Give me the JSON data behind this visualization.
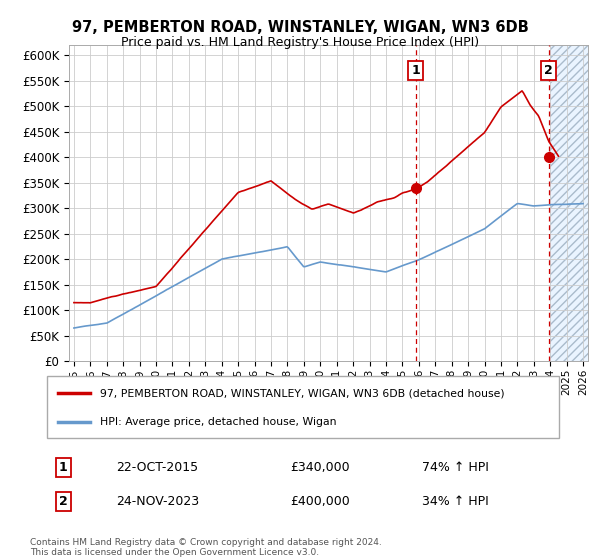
{
  "title": "97, PEMBERTON ROAD, WINSTANLEY, WIGAN, WN3 6DB",
  "subtitle": "Price paid vs. HM Land Registry's House Price Index (HPI)",
  "xlim_start": 1995,
  "xlim_end": 2026,
  "ylim_min": 0,
  "ylim_max": 620000,
  "yticks": [
    0,
    50000,
    100000,
    150000,
    200000,
    250000,
    300000,
    350000,
    400000,
    450000,
    500000,
    550000,
    600000
  ],
  "ytick_labels": [
    "£0",
    "£50K",
    "£100K",
    "£150K",
    "£200K",
    "£250K",
    "£300K",
    "£350K",
    "£400K",
    "£450K",
    "£500K",
    "£550K",
    "£600K"
  ],
  "xticks": [
    1995,
    1996,
    1997,
    1998,
    1999,
    2000,
    2001,
    2002,
    2003,
    2004,
    2005,
    2006,
    2007,
    2008,
    2009,
    2010,
    2011,
    2012,
    2013,
    2014,
    2015,
    2016,
    2017,
    2018,
    2019,
    2020,
    2021,
    2022,
    2023,
    2024,
    2025,
    2026
  ],
  "sale1_x": 2015.8,
  "sale1_y": 340000,
  "sale1_label": "1",
  "sale1_date": "22-OCT-2015",
  "sale1_price": "£340,000",
  "sale1_hpi": "74% ↑ HPI",
  "sale2_x": 2023.9,
  "sale2_y": 400000,
  "sale2_label": "2",
  "sale2_date": "24-NOV-2023",
  "sale2_price": "£400,000",
  "sale2_hpi": "34% ↑ HPI",
  "line_color_property": "#cc0000",
  "line_color_hpi": "#6699cc",
  "legend_label_property": "97, PEMBERTON ROAD, WINSTANLEY, WIGAN, WN3 6DB (detached house)",
  "legend_label_hpi": "HPI: Average price, detached house, Wigan",
  "footnote": "Contains HM Land Registry data © Crown copyright and database right 2024.\nThis data is licensed under the Open Government Licence v3.0.",
  "grid_color": "#cccccc",
  "bg_color": "#ffffff",
  "future_fill_color": "#ddeeff",
  "future_hatch_color": "#bbccdd"
}
